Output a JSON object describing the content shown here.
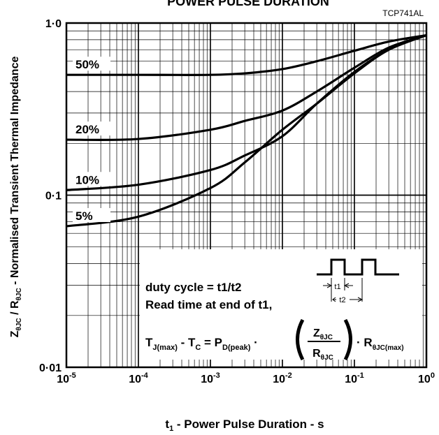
{
  "chart_data": {
    "type": "line",
    "title": "POWER PULSE DURATION",
    "code": "TCP741AL",
    "xlabel": "t1 - Power Pulse Duration - s",
    "ylabel": "ZθJC / RθJC - Normalised Transient Thermal Impedance",
    "x_scale": "log",
    "y_scale": "log",
    "xlim": [
      1e-05,
      1
    ],
    "ylim": [
      0.01,
      1
    ],
    "grid": true,
    "x_ticks": [
      {
        "value": 1e-05,
        "base": "10",
        "exp": "-5"
      },
      {
        "value": 0.0001,
        "base": "10",
        "exp": "-4"
      },
      {
        "value": 0.001,
        "base": "10",
        "exp": "-3"
      },
      {
        "value": 0.01,
        "base": "10",
        "exp": "-2"
      },
      {
        "value": 0.1,
        "base": "10",
        "exp": "-1"
      },
      {
        "value": 1,
        "base": "10",
        "exp": "0"
      }
    ],
    "y_ticks": [
      {
        "value": 0.01,
        "label": "0·01"
      },
      {
        "value": 0.1,
        "label": "0·1"
      },
      {
        "value": 1,
        "label": "1·0"
      }
    ],
    "series": [
      {
        "name": "50%",
        "x": [
          1e-05,
          0.0001,
          0.001,
          0.003,
          0.01,
          0.03,
          0.1,
          0.3,
          1
        ],
        "y": [
          0.5,
          0.5,
          0.5,
          0.51,
          0.54,
          0.6,
          0.69,
          0.78,
          0.85
        ]
      },
      {
        "name": "20%",
        "x": [
          1e-05,
          0.0001,
          0.001,
          0.003,
          0.01,
          0.03,
          0.1,
          0.3,
          1
        ],
        "y": [
          0.21,
          0.212,
          0.24,
          0.27,
          0.31,
          0.4,
          0.55,
          0.72,
          0.85
        ]
      },
      {
        "name": "10%",
        "x": [
          1e-05,
          0.0001,
          0.001,
          0.003,
          0.01,
          0.03,
          0.1,
          0.3,
          1
        ],
        "y": [
          0.107,
          0.115,
          0.14,
          0.17,
          0.22,
          0.34,
          0.52,
          0.7,
          0.85
        ]
      },
      {
        "name": "5%",
        "x": [
          1e-05,
          0.0001,
          0.001,
          0.003,
          0.01,
          0.03,
          0.1,
          0.3,
          1
        ],
        "y": [
          0.066,
          0.075,
          0.11,
          0.155,
          0.24,
          0.34,
          0.51,
          0.7,
          0.85
        ]
      }
    ],
    "annotation": {
      "line1": "duty cycle = t1/t2",
      "line2": "Read time at end of t1,",
      "pulse_t1": "t1",
      "pulse_t2": "t2",
      "formula": {
        "tj": "T",
        "tj_sub": "J(max)",
        "minus": " - T",
        "tc_sub": "C",
        "eq": " = P",
        "pd_sub": "D(peak)",
        "dot": "·",
        "num": "Z",
        "num_sub": "θJC",
        "den": "R",
        "den_sub": "θJC",
        "rmax": "R",
        "rmax_sub": "θJC(max)"
      }
    }
  }
}
